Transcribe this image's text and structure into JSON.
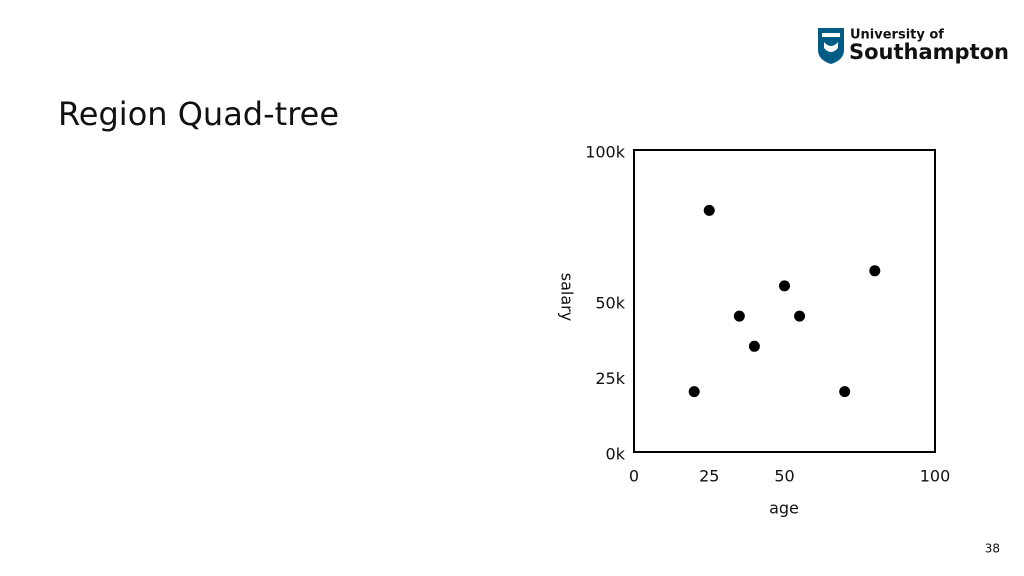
{
  "slide_title": "Region Quad-tree",
  "logo": {
    "line1": "University of",
    "line2": "Southampton"
  },
  "page_number": "38",
  "chart_data": {
    "type": "scatter",
    "x_label": "age",
    "y_label": "salary",
    "x": [
      25,
      20,
      35,
      40,
      50,
      55,
      70,
      80
    ],
    "values": [
      80000,
      20000,
      45000,
      35000,
      55000,
      45000,
      20000,
      60000
    ],
    "color": "#000000",
    "xlim": [
      0,
      100
    ],
    "xticks": [
      0,
      25,
      50,
      100
    ],
    "ylim": [
      0,
      100000
    ],
    "yticks": [
      {
        "value": 0,
        "label": "0k"
      },
      {
        "value": 25000,
        "label": "25k"
      },
      {
        "value": 50000,
        "label": "50k"
      },
      {
        "value": 100000,
        "label": "100k"
      }
    ],
    "grid": false
  }
}
